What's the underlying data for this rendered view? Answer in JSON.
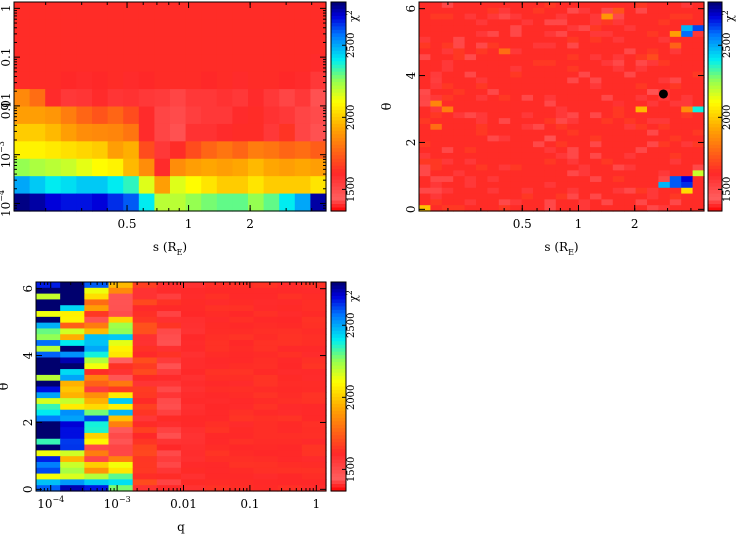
{
  "chart_data": [
    {
      "id": "panel_s_q",
      "type": "heatmap",
      "xlabel": "s (R",
      "xlabel_sub": "E",
      "xlabel_tail": ")",
      "ylabel": "q",
      "xscale": "log",
      "yscale": "log",
      "xlim": [
        0.14,
        4.7
      ],
      "ylim": [
        7e-05,
        1.35
      ],
      "x_ticks": [
        {
          "v": 0.5,
          "t": "0.5"
        },
        {
          "v": 1,
          "t": "1"
        },
        {
          "v": 2,
          "t": "2"
        }
      ],
      "y_ticks": [
        {
          "v": 0.0001,
          "t": "10",
          "sup": "−4"
        },
        {
          "v": 0.001,
          "t": "10",
          "sup": "−3"
        },
        {
          "v": 0.01,
          "t": "0.01"
        },
        {
          "v": 0.1,
          "t": "0.1"
        },
        {
          "v": 1,
          "t": "1"
        }
      ],
      "nx": 20,
      "ny": 12,
      "grid": [
        [
          1620,
          1620,
          1620,
          1620,
          1620,
          1620,
          1620,
          1620,
          1620,
          1620,
          1620,
          1620,
          1620,
          1620,
          1620,
          1620,
          1620,
          1620,
          1620,
          1620
        ],
        [
          1620,
          1620,
          1620,
          1620,
          1620,
          1620,
          1620,
          1620,
          1620,
          1620,
          1620,
          1620,
          1620,
          1620,
          1620,
          1620,
          1620,
          1620,
          1620,
          1620
        ],
        [
          1620,
          1620,
          1620,
          1620,
          1620,
          1620,
          1620,
          1620,
          1620,
          1620,
          1620,
          1620,
          1620,
          1620,
          1620,
          1620,
          1620,
          1620,
          1620,
          1620
        ],
        [
          1620,
          1620,
          1620,
          1620,
          1620,
          1620,
          1620,
          1620,
          1620,
          1620,
          1620,
          1620,
          1620,
          1620,
          1620,
          1620,
          1620,
          1620,
          1620,
          1600
        ],
        [
          1620,
          1620,
          1620,
          1610,
          1600,
          1610,
          1620,
          1600,
          1610,
          1620,
          1620,
          1620,
          1610,
          1620,
          1600,
          1620,
          1620,
          1610,
          1600,
          1560
        ],
        [
          1850,
          1780,
          1600,
          1560,
          1570,
          1600,
          1570,
          1580,
          1560,
          1550,
          1520,
          1560,
          1560,
          1580,
          1560,
          1600,
          1560,
          1520,
          1560,
          1480
        ],
        [
          1900,
          1900,
          1880,
          1820,
          1760,
          1720,
          1760,
          1700,
          1600,
          1520,
          1500,
          1540,
          1560,
          1560,
          1600,
          1620,
          1580,
          1560,
          1520,
          1500
        ],
        [
          2000,
          2000,
          1960,
          1900,
          1860,
          1850,
          1840,
          1800,
          1600,
          1520,
          1480,
          1580,
          1580,
          1600,
          1620,
          1620,
          1560,
          1640,
          1520,
          1480
        ],
        [
          2080,
          2080,
          2060,
          2040,
          2020,
          2000,
          1900,
          1940,
          1700,
          1560,
          1620,
          1700,
          1760,
          1800,
          1760,
          1820,
          1800,
          1760,
          1780,
          1740
        ],
        [
          2250,
          2220,
          2200,
          2180,
          2140,
          2100,
          2080,
          1960,
          1860,
          1600,
          1860,
          1900,
          1920,
          1900,
          1920,
          1960,
          1920,
          1900,
          1920,
          1900
        ],
        [
          2500,
          2450,
          2400,
          2420,
          2450,
          2450,
          2400,
          2350,
          2150,
          1900,
          2150,
          2100,
          2050,
          2000,
          2000,
          2050,
          2000,
          2000,
          2000,
          2050
        ],
        [
          2780,
          2750,
          2700,
          2680,
          2680,
          2700,
          2650,
          2600,
          2400,
          2200,
          2200,
          2250,
          2280,
          2300,
          2300,
          2250,
          2300,
          2400,
          2500,
          2750
        ]
      ]
    },
    {
      "id": "panel_s_theta",
      "type": "heatmap",
      "xlabel": "s (R",
      "xlabel_sub": "E",
      "xlabel_tail": ")",
      "ylabel": "θ",
      "xscale": "log",
      "yscale": "linear",
      "xlim": [
        0.14,
        4.7
      ],
      "ylim": [
        -0.05,
        6.2
      ],
      "x_ticks": [
        {
          "v": 0.5,
          "t": "0.5"
        },
        {
          "v": 1,
          "t": "1"
        },
        {
          "v": 2,
          "t": "2"
        }
      ],
      "y_ticks": [
        {
          "v": 0,
          "t": "0"
        },
        {
          "v": 2,
          "t": "2"
        },
        {
          "v": 4,
          "t": "4"
        },
        {
          "v": 6,
          "t": "6"
        }
      ],
      "marker": {
        "x": 2.85,
        "y": 3.45
      },
      "nx": 25,
      "ny": 36,
      "base": 1620,
      "hotspots": [
        {
          "i": 0,
          "j": 0,
          "v": 1980
        },
        {
          "i": 0,
          "j": 20,
          "v": 1500
        },
        {
          "i": 0,
          "j": 19,
          "v": 1520
        },
        {
          "i": 1,
          "j": 14,
          "v": 1780
        },
        {
          "i": 1,
          "j": 18,
          "v": 1840
        },
        {
          "i": 2,
          "j": 17,
          "v": 1820
        },
        {
          "i": 1,
          "j": 22,
          "v": 1540
        },
        {
          "i": 1,
          "j": 23,
          "v": 1550
        },
        {
          "i": 21,
          "j": 4,
          "v": 2480
        },
        {
          "i": 22,
          "j": 4,
          "v": 2600
        },
        {
          "i": 23,
          "j": 4,
          "v": 2650
        },
        {
          "i": 23,
          "j": 3,
          "v": 2030
        },
        {
          "i": 22,
          "j": 5,
          "v": 2600
        },
        {
          "i": 24,
          "j": 6,
          "v": 2180
        },
        {
          "i": 23,
          "j": 5,
          "v": 2700
        },
        {
          "i": 23,
          "j": 17,
          "v": 1860
        },
        {
          "i": 24,
          "j": 17,
          "v": 2380
        },
        {
          "i": 19,
          "j": 17,
          "v": 1960
        },
        {
          "i": 17,
          "j": 18,
          "v": 1580
        },
        {
          "i": 20,
          "j": 20,
          "v": 1480
        },
        {
          "i": 4,
          "j": 26,
          "v": 1500
        },
        {
          "i": 7,
          "j": 27,
          "v": 1780
        },
        {
          "i": 22,
          "j": 30,
          "v": 1900
        },
        {
          "i": 22,
          "j": 28,
          "v": 1750
        },
        {
          "i": 23,
          "j": 30,
          "v": 2580
        },
        {
          "i": 23,
          "j": 31,
          "v": 2480
        },
        {
          "i": 24,
          "j": 31,
          "v": 2620
        },
        {
          "i": 16,
          "j": 33,
          "v": 1880
        },
        {
          "i": 11,
          "j": 12,
          "v": 1480
        },
        {
          "i": 13,
          "j": 34,
          "v": 1500
        },
        {
          "i": 17,
          "j": 34,
          "v": 1720
        },
        {
          "i": 20,
          "j": 26,
          "v": 1700
        }
      ]
    },
    {
      "id": "panel_q_theta",
      "type": "heatmap",
      "xlabel": "q",
      "ylabel": "θ",
      "xscale": "log",
      "yscale": "linear",
      "xlim": [
        6e-05,
        1.4
      ],
      "ylim": [
        -0.05,
        6.2
      ],
      "x_ticks": [
        {
          "v": 0.0001,
          "t": "10",
          "sup": "−4"
        },
        {
          "v": 0.001,
          "t": "10",
          "sup": "−3"
        },
        {
          "v": 0.01,
          "t": "0.01"
        },
        {
          "v": 0.1,
          "t": "0.1"
        },
        {
          "v": 1,
          "t": "1"
        }
      ],
      "y_ticks": [
        {
          "v": 0,
          "t": "0"
        },
        {
          "v": 2,
          "t": "2"
        },
        {
          "v": 4,
          "t": "4"
        },
        {
          "v": 6,
          "t": "6"
        }
      ],
      "nx": 12,
      "ny": 36,
      "column_profile": [
        2780,
        2400,
        2050,
        1850,
        1640,
        1560,
        1600,
        1620,
        1620,
        1620,
        1620,
        1620
      ]
    }
  ],
  "colorbar": {
    "label": "χ",
    "label_sup": "2",
    "ticks": [
      1500,
      2000,
      2500
    ],
    "min": 1350,
    "max": 2800
  }
}
